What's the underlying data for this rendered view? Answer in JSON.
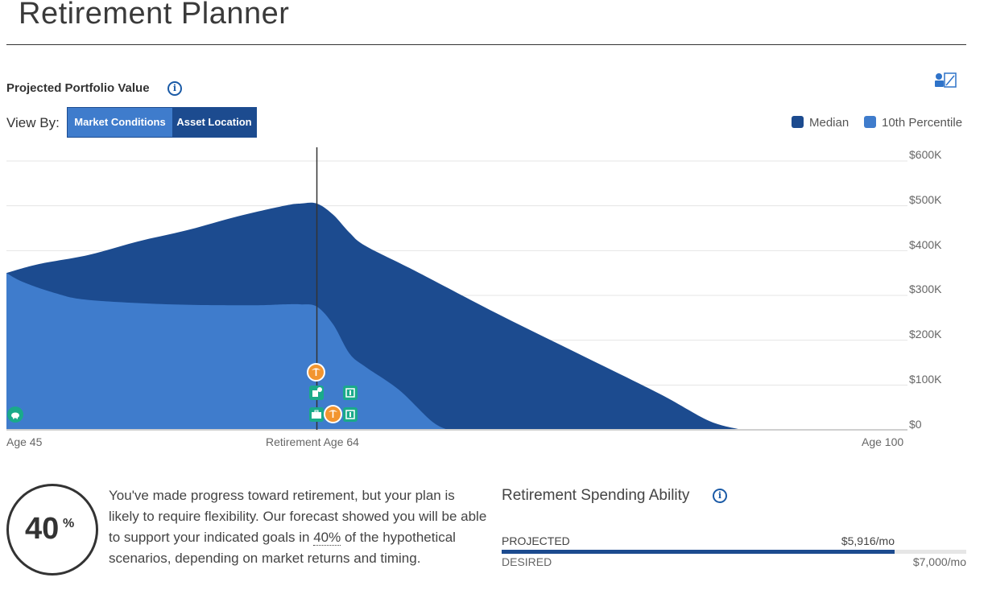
{
  "page": {
    "title": "Retirement Planner"
  },
  "portfolio": {
    "section_label": "Projected Portfolio Value",
    "view_by_label": "View By:",
    "view_options": [
      {
        "label": "Market Conditions",
        "selected": false
      },
      {
        "label": "Asset Location",
        "selected": true
      }
    ],
    "legend": [
      {
        "label": "Median",
        "color": "#1c4b8f"
      },
      {
        "label": "10th Percentile",
        "color": "#3f7ccc"
      }
    ],
    "event_icons": [
      "piggy-bank-icon",
      "palm-tree-icon",
      "house-dollar-icon",
      "dollar-bill-icon",
      "briefcase-icon",
      "palm-tree-icon",
      "dollar-bill-icon"
    ]
  },
  "chart_data": {
    "type": "area",
    "x_tick_labels": [
      "Age 45",
      "Retirement Age 64",
      "Age 100"
    ],
    "y_tick_labels": [
      "$0",
      "$100K",
      "$200K",
      "$300K",
      "$400K",
      "$500K",
      "$600K"
    ],
    "xlim": [
      45,
      100
    ],
    "ylim": [
      0,
      600000
    ],
    "x_unit": "age",
    "marker_x": 64,
    "grid": true,
    "legend_position": "top-right",
    "series": [
      {
        "name": "Median",
        "color": "#1c4b8f",
        "x": [
          45,
          47,
          50,
          53,
          56,
          59,
          62,
          63,
          64,
          65,
          66,
          67,
          70,
          75,
          80,
          85,
          88,
          90
        ],
        "values": [
          350000,
          370000,
          390000,
          420000,
          445000,
          475000,
          500000,
          505000,
          505000,
          480000,
          440000,
          410000,
          355000,
          260000,
          170000,
          80000,
          20000,
          0
        ]
      },
      {
        "name": "10th Percentile",
        "color": "#3f7ccc",
        "x": [
          45,
          46,
          48,
          50,
          55,
          60,
          62,
          63,
          64,
          65,
          66,
          67,
          69,
          71,
          72
        ],
        "values": [
          350000,
          330000,
          305000,
          290000,
          280000,
          278000,
          280000,
          280000,
          275000,
          235000,
          170000,
          140000,
          90000,
          20000,
          0
        ]
      }
    ]
  },
  "score": {
    "value": "40",
    "unit": "%",
    "summary_before": "You've made progress toward retirement, but your plan is likely to require flexibility. Our forecast showed you will be able to support your indicated goals in ",
    "summary_pct": "40%",
    "summary_after": " of the hypothetical scenarios, depending on market returns and timing."
  },
  "spending": {
    "title": "Retirement Spending Ability",
    "projected_label": "PROJECTED",
    "projected_value": "$5,916/mo",
    "desired_label": "DESIRED",
    "desired_value": "$7,000/mo",
    "projected_fraction": 0.845
  }
}
